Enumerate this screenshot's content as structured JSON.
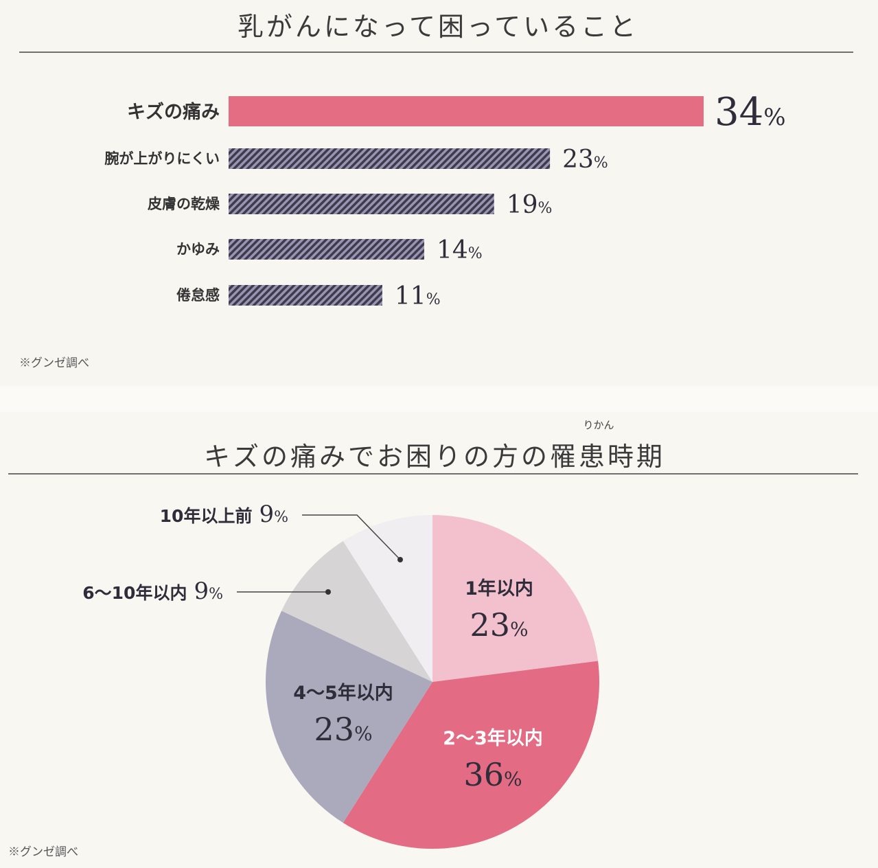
{
  "chart_data": [
    {
      "type": "bar",
      "orientation": "horizontal",
      "title": "乳がんになって困っていること",
      "categories": [
        "キズの痛み",
        "腕が上がりにくい",
        "皮膚の乾燥",
        "かゆみ",
        "倦怠感"
      ],
      "values": [
        34,
        23,
        19,
        14,
        11
      ],
      "value_labels": [
        "34",
        "23",
        "19",
        "14",
        "11"
      ],
      "unit": "%",
      "highlight": "キズの痛み",
      "colors": {
        "highlight": "#e46d84",
        "stripe_dark": "#3e3b4b",
        "stripe_light": "#9a94b4"
      },
      "note": "※グンゼ調べ"
    },
    {
      "type": "pie",
      "title": "キズの痛みでお困りの方の罹患時期",
      "title_ruby": "りかん",
      "slices": [
        {
          "label": "1年以内",
          "value": 23,
          "value_label": "23",
          "color": "#f2c1cd"
        },
        {
          "label": "2〜3年以内",
          "value": 36,
          "value_label": "36",
          "color": "#e36c84"
        },
        {
          "label": "4〜5年以内",
          "value": 23,
          "value_label": "23",
          "color": "#aba9bc"
        },
        {
          "label": "6〜10年以内",
          "value": 9,
          "value_label": "9",
          "color": "#d6d4d4"
        },
        {
          "label": "10年以上前",
          "value": 9,
          "value_label": "9",
          "color": "#f0eef1"
        }
      ],
      "unit": "%",
      "note": "※グンゼ調べ"
    }
  ]
}
